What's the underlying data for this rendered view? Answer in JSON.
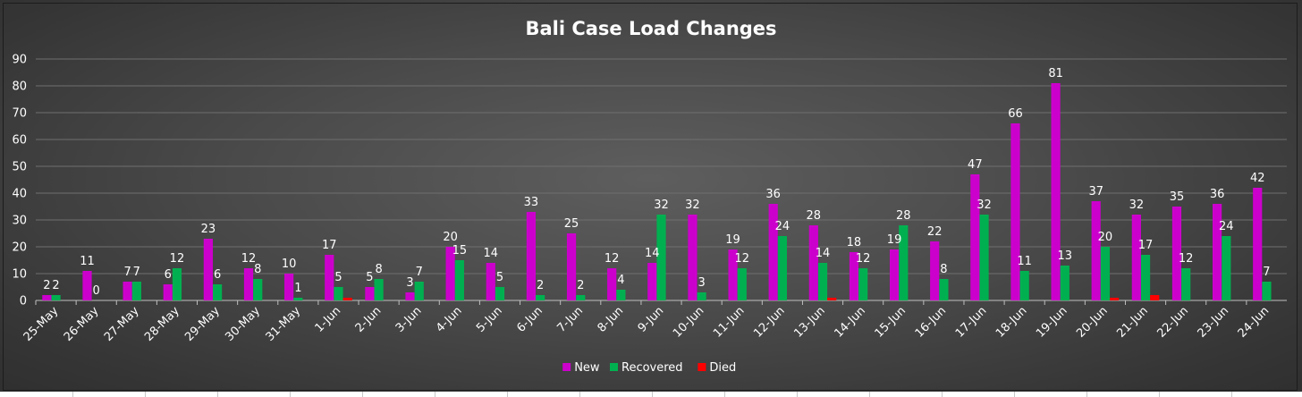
{
  "chart_data": {
    "type": "bar",
    "title": "Bali Case Load Changes",
    "xlabel": "",
    "ylabel": "",
    "ylim": [
      0,
      90
    ],
    "yticks": [
      0,
      10,
      20,
      30,
      40,
      50,
      60,
      70,
      80,
      90
    ],
    "grid": true,
    "legend_position": "bottom",
    "categories": [
      "25-May",
      "26-May",
      "27-May",
      "28-May",
      "29-May",
      "30-May",
      "31-May",
      "1-Jun",
      "2-Jun",
      "3-Jun",
      "4-Jun",
      "5-Jun",
      "6-Jun",
      "7-Jun",
      "8-Jun",
      "9-Jun",
      "10-Jun",
      "11-Jun",
      "12-Jun",
      "13-Jun",
      "14-Jun",
      "15-Jun",
      "16-Jun",
      "17-Jun",
      "18-Jun",
      "19-Jun",
      "20-Jun",
      "21-Jun",
      "22-Jun",
      "23-Jun",
      "24-Jun"
    ],
    "series": [
      {
        "name": "New",
        "color": "#cc00cc",
        "values": [
          2,
          11,
          7,
          6,
          23,
          12,
          10,
          17,
          5,
          3,
          20,
          14,
          33,
          25,
          12,
          14,
          32,
          19,
          36,
          28,
          18,
          19,
          22,
          47,
          66,
          81,
          37,
          32,
          35,
          36,
          42
        ],
        "labels_shown": [
          true,
          true,
          true,
          true,
          true,
          true,
          true,
          true,
          true,
          true,
          true,
          true,
          true,
          true,
          true,
          true,
          true,
          true,
          true,
          true,
          true,
          true,
          true,
          true,
          true,
          true,
          true,
          true,
          true,
          true,
          true
        ]
      },
      {
        "name": "Recovered",
        "color": "#00b050",
        "values": [
          2,
          0,
          7,
          12,
          6,
          8,
          1,
          5,
          8,
          7,
          15,
          5,
          2,
          2,
          4,
          32,
          3,
          12,
          24,
          14,
          12,
          28,
          8,
          32,
          11,
          13,
          20,
          17,
          12,
          24,
          7
        ],
        "labels_shown": [
          true,
          true,
          true,
          true,
          true,
          true,
          true,
          true,
          true,
          true,
          true,
          true,
          true,
          true,
          true,
          true,
          true,
          true,
          true,
          true,
          true,
          true,
          true,
          true,
          true,
          true,
          true,
          true,
          true,
          true,
          true
        ]
      },
      {
        "name": "Died",
        "color": "#ff0000",
        "values": [
          0,
          0,
          0,
          0,
          0,
          0,
          0,
          1,
          0,
          0,
          0,
          0,
          0,
          0,
          0,
          0,
          0,
          0,
          0,
          1,
          0,
          0,
          0,
          0,
          0,
          0,
          1,
          2,
          0,
          0,
          0
        ],
        "labels_shown": [
          false,
          false,
          false,
          false,
          false,
          false,
          false,
          false,
          false,
          false,
          false,
          false,
          false,
          false,
          false,
          false,
          false,
          false,
          false,
          false,
          false,
          false,
          false,
          false,
          false,
          false,
          false,
          false,
          false,
          false,
          false
        ]
      }
    ]
  }
}
